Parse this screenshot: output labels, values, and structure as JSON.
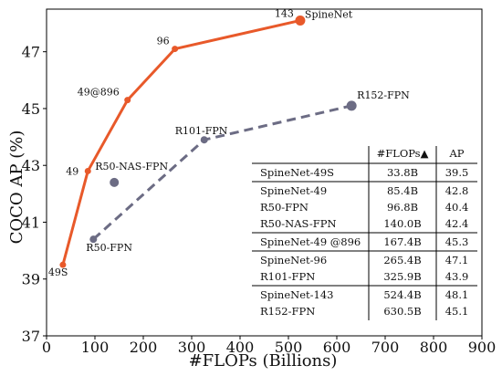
{
  "chart_data": {
    "type": "line",
    "xlabel": "#FLOPs (Billions)",
    "ylabel": "COCO AP (%)",
    "xlim": [
      0,
      900
    ],
    "ylim": [
      37,
      48.5
    ],
    "xticks": [
      0,
      100,
      200,
      300,
      400,
      500,
      600,
      700,
      800,
      900
    ],
    "yticks": [
      37,
      39,
      41,
      43,
      45,
      47
    ],
    "grid": false,
    "series": [
      {
        "name": "SpineNet",
        "color": "#e8592a",
        "style": "solid",
        "points": [
          {
            "x": 33.8,
            "y": 39.5,
            "label": "49S"
          },
          {
            "x": 85.4,
            "y": 42.8,
            "label": "49"
          },
          {
            "x": 167.4,
            "y": 45.3,
            "label": "49@896"
          },
          {
            "x": 265.4,
            "y": 47.1,
            "label": "96"
          },
          {
            "x": 524.4,
            "y": 48.1,
            "label": "143"
          }
        ],
        "end_label": "SpineNet"
      },
      {
        "color": "#6c6c84",
        "style": "dashed",
        "points": [
          {
            "x": 96.8,
            "y": 40.4,
            "label": "R50-FPN"
          },
          {
            "x": 325.9,
            "y": 43.9,
            "label": "R101-FPN"
          },
          {
            "x": 630.5,
            "y": 45.1,
            "label": "R152-FPN"
          }
        ]
      }
    ],
    "extra_points": [
      {
        "x": 140.0,
        "y": 42.4,
        "label": "R50-NAS-FPN",
        "color": "#6c6c84"
      }
    ],
    "table": {
      "headers": [
        "",
        "#FLOPs▲",
        "AP"
      ],
      "groups": [
        [
          [
            "SpineNet-49S",
            "33.8B",
            "39.5"
          ]
        ],
        [
          [
            "SpineNet-49",
            "85.4B",
            "42.8"
          ],
          [
            "R50-FPN",
            "96.8B",
            "40.4"
          ],
          [
            "R50-NAS-FPN",
            "140.0B",
            "42.4"
          ]
        ],
        [
          [
            "SpineNet-49 @896",
            "167.4B",
            "45.3"
          ]
        ],
        [
          [
            "SpineNet-96",
            "265.4B",
            "47.1"
          ],
          [
            "R101-FPN",
            "325.9B",
            "43.9"
          ]
        ],
        [
          [
            "SpineNet-143",
            "524.4B",
            "48.1"
          ],
          [
            "R152-FPN",
            "630.5B",
            "45.1"
          ]
        ]
      ]
    }
  }
}
